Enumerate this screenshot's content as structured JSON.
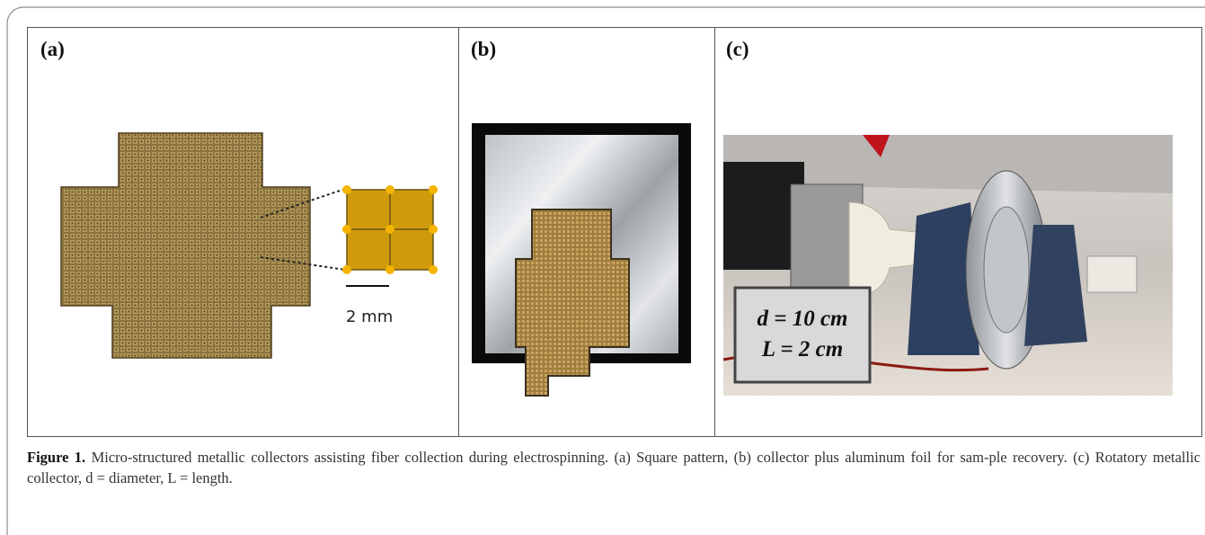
{
  "panels": [
    {
      "label": "(a)",
      "scale_bar": "2 mm"
    },
    {
      "label": "(b)"
    },
    {
      "label": "(c)",
      "annotations": [
        "d = 10 cm",
        "L = 2 cm"
      ]
    }
  ],
  "caption": {
    "label": "Figure 1.",
    "text": "Micro-structured metallic collectors assisting fiber collection during electrospinning. (a) Square pattern, (b) collector plus aluminum foil for sam-ple recovery. (c) Rotatory metallic collector, d = diameter, L = length."
  }
}
